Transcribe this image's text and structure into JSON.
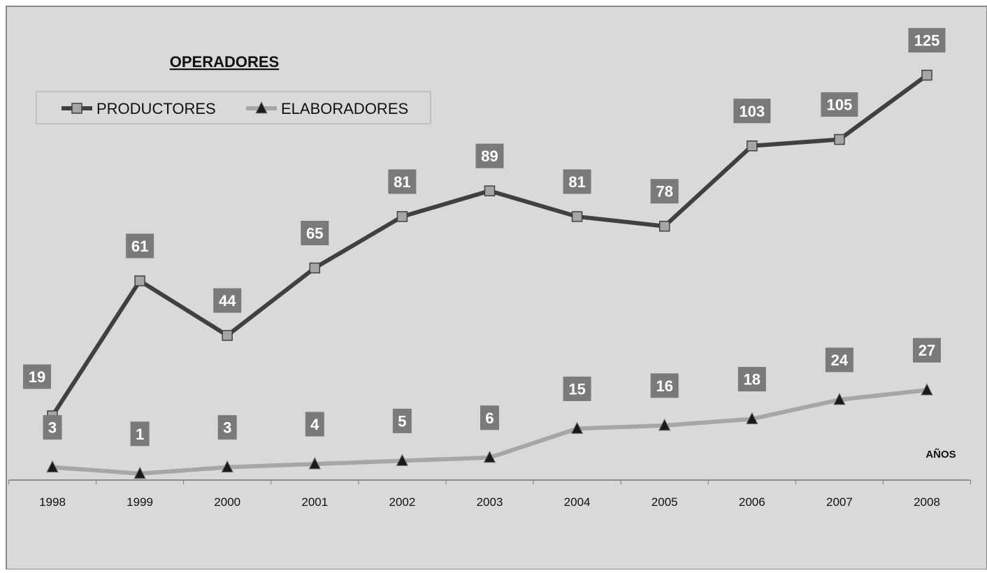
{
  "chart_data": {
    "type": "line",
    "title": "OPERADORES",
    "xlabel": "AÑOS",
    "ylabel": "",
    "categories": [
      "1998",
      "1999",
      "2000",
      "2001",
      "2002",
      "2003",
      "2004",
      "2005",
      "2006",
      "2007",
      "2008"
    ],
    "series": [
      {
        "name": "PRODUCTORES",
        "values": [
          19,
          61,
          44,
          65,
          81,
          89,
          81,
          78,
          103,
          105,
          125
        ],
        "color": "#404040",
        "marker": "square"
      },
      {
        "name": "ELABORADORES",
        "values": [
          3,
          1,
          3,
          4,
          5,
          6,
          15,
          16,
          18,
          24,
          27
        ],
        "color": "#a6a6a6",
        "marker": "triangle"
      }
    ],
    "ylim": [
      -1,
      131
    ],
    "grid": false,
    "legend": "top-left",
    "data_labels": true,
    "label_box_color": "#7a7a7a",
    "background": "#d9d9d9"
  }
}
